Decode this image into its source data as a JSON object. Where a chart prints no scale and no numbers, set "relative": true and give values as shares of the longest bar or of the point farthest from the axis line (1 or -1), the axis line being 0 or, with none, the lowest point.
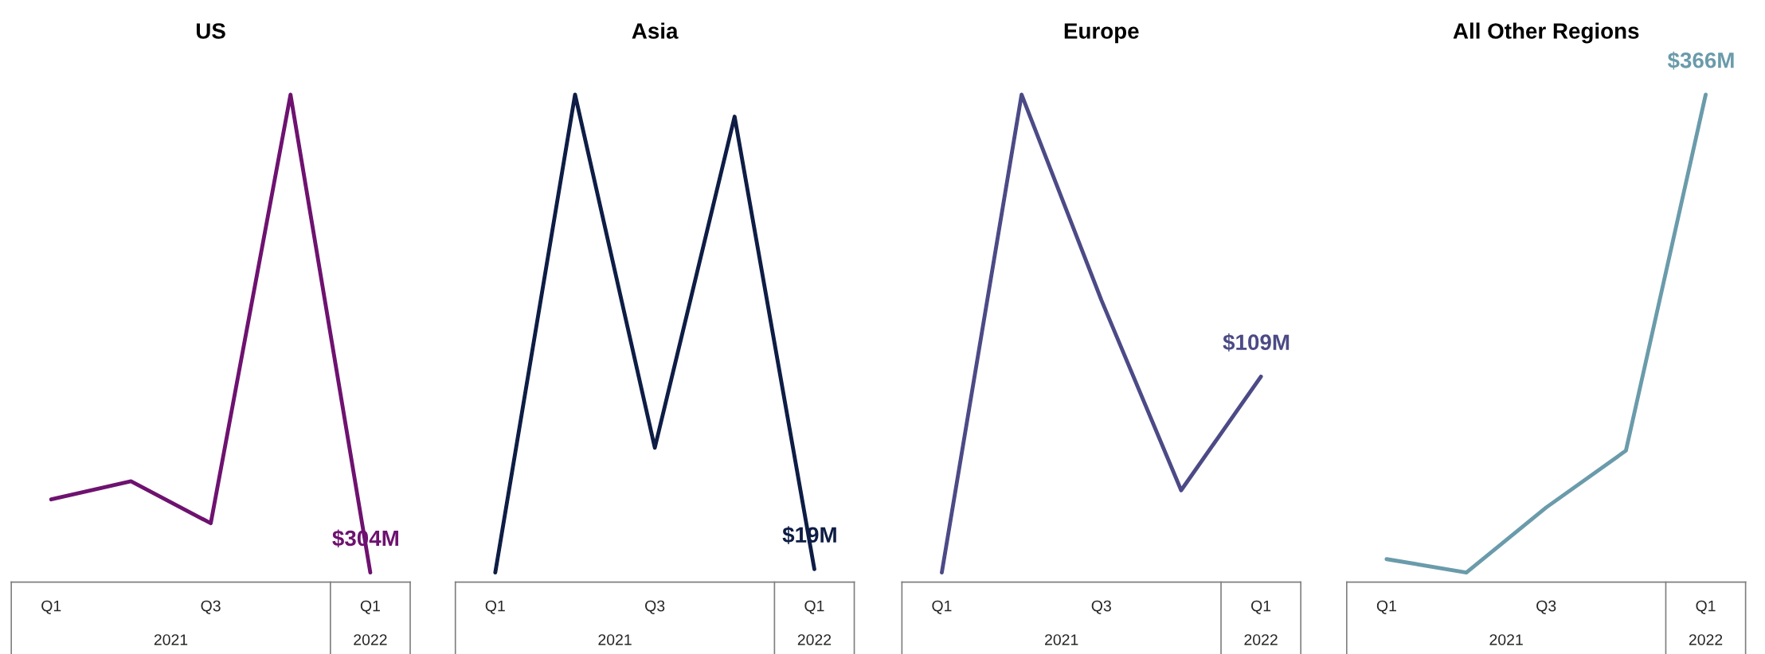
{
  "chart_data": [
    {
      "type": "line",
      "title": "US",
      "relative": true,
      "categories": [
        "Q1",
        null,
        "Q3",
        null,
        "Q1"
      ],
      "annotations": [
        "2021",
        "2022",
        {
          "text": "$304M",
          "y": 0
        }
      ],
      "series": [
        {
          "color": "#6e1270",
          "values": [
            0.153,
            0.191,
            0.103,
            1,
            0
          ]
        }
      ]
    },
    {
      "type": "line",
      "title": "Asia",
      "relative": true,
      "categories": [
        "Q1",
        null,
        "Q3",
        null,
        "Q1"
      ],
      "annotations": [
        "2021",
        "2022",
        {
          "text": "$19M",
          "y": 0.007
        }
      ],
      "series": [
        {
          "color": "#0e1d45",
          "values": [
            0,
            1,
            0.261,
            0.954,
            0.007
          ]
        }
      ]
    },
    {
      "type": "line",
      "title": "Europe",
      "relative": true,
      "categories": [
        "Q1",
        null,
        "Q3",
        null,
        "Q1"
      ],
      "annotations": [
        "2021",
        "2022",
        {
          "text": "$109M",
          "y": 0.41
        }
      ],
      "series": [
        {
          "color": "#4c4a86",
          "values": [
            0,
            1,
            0.57,
            0.172,
            0.41
          ]
        }
      ]
    },
    {
      "type": "line",
      "title": "All Other Regions",
      "relative": true,
      "categories": [
        "Q1",
        null,
        "Q3",
        null,
        "Q1"
      ],
      "annotations": [
        "2021",
        "2022",
        {
          "text": "$366M",
          "y": 1
        }
      ],
      "series": [
        {
          "color": "#6a9bab",
          "values": [
            0.028,
            0,
            0.136,
            0.255,
            1
          ]
        }
      ]
    }
  ]
}
